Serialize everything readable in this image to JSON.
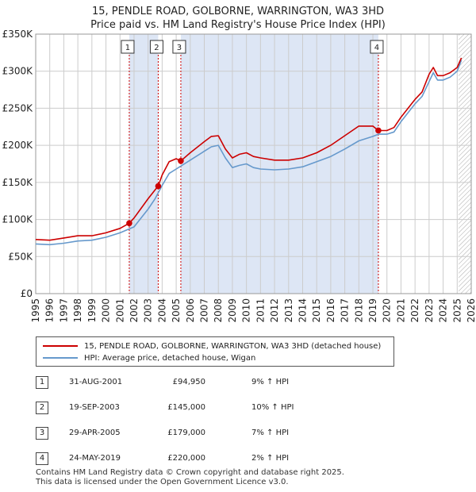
{
  "title": {
    "line1": "15, PENDLE ROAD, GOLBORNE, WARRINGTON, WA3 3HD",
    "line2": "Price paid vs. HM Land Registry's House Price Index (HPI)"
  },
  "chart_data": {
    "type": "line",
    "title": "15, PENDLE ROAD, GOLBORNE, WARRINGTON, WA3 3HD — Price paid vs. HM Land Registry's House Price Index (HPI)",
    "xlim": [
      1995,
      2026
    ],
    "ylim": [
      0,
      350000
    ],
    "x_ticks": [
      "1995",
      "1996",
      "1997",
      "1998",
      "1999",
      "2000",
      "2001",
      "2002",
      "2003",
      "2004",
      "2005",
      "2006",
      "2007",
      "2008",
      "2009",
      "2010",
      "2011",
      "2012",
      "2013",
      "2014",
      "2015",
      "2016",
      "2017",
      "2018",
      "2019",
      "2020",
      "2021",
      "2022",
      "2023",
      "2024",
      "2025",
      "2026"
    ],
    "y_ticks": [
      {
        "value": 0,
        "label": "£0"
      },
      {
        "value": 50000,
        "label": "£50K"
      },
      {
        "value": 100000,
        "label": "£100K"
      },
      {
        "value": 150000,
        "label": "£150K"
      },
      {
        "value": 200000,
        "label": "£200K"
      },
      {
        "value": 250000,
        "label": "£250K"
      },
      {
        "value": 300000,
        "label": "£300K"
      },
      {
        "value": 350000,
        "label": "£350K"
      }
    ],
    "grid": true,
    "series": [
      {
        "name": "15, PENDLE ROAD, GOLBORNE, WARRINGTON, WA3 3HD (detached house)",
        "color": "#cc0000",
        "x": [
          1995,
          1996,
          1997,
          1998,
          1999,
          2000,
          2001,
          2001.66,
          2002,
          2002.5,
          2003,
          2003.5,
          2003.72,
          2004,
          2004.5,
          2005,
          2005.33,
          2006,
          2007,
          2007.5,
          2008,
          2008.5,
          2009,
          2009.5,
          2010,
          2010.5,
          2011,
          2012,
          2013,
          2014,
          2015,
          2016,
          2017,
          2018,
          2019,
          2019.39,
          2020,
          2020.5,
          2021,
          2022,
          2022.5,
          2023,
          2023.3,
          2023.6,
          2024,
          2024.5,
          2025,
          2025.3
        ],
        "y": [
          73000,
          72000,
          75000,
          78000,
          78000,
          82000,
          88000,
          94950,
          102000,
          115000,
          128000,
          140000,
          145000,
          160000,
          178000,
          182000,
          179000,
          190000,
          205000,
          212000,
          213000,
          195000,
          183000,
          188000,
          190000,
          185000,
          183000,
          180000,
          180000,
          183000,
          190000,
          200000,
          213000,
          226000,
          226000,
          220000,
          220000,
          224000,
          238000,
          262000,
          272000,
          296000,
          305000,
          294000,
          294000,
          298000,
          305000,
          318000
        ]
      },
      {
        "name": "HPI: Average price, detached house, Wigan",
        "color": "#6699cc",
        "x": [
          1995,
          1996,
          1997,
          1998,
          1999,
          2000,
          2001,
          2002,
          2002.5,
          2003,
          2003.5,
          2004,
          2004.5,
          2005,
          2006,
          2007,
          2007.5,
          2008,
          2008.5,
          2009,
          2009.5,
          2010,
          2010.5,
          2011,
          2012,
          2013,
          2014,
          2015,
          2016,
          2017,
          2018,
          2019,
          2019.4,
          2020,
          2020.5,
          2021,
          2022,
          2022.5,
          2023,
          2023.3,
          2023.6,
          2024,
          2024.5,
          2025,
          2025.3
        ],
        "y": [
          67000,
          66000,
          68000,
          71000,
          72000,
          76000,
          82000,
          90000,
          102000,
          114000,
          128000,
          146000,
          162000,
          168000,
          180000,
          192000,
          198000,
          200000,
          183000,
          170000,
          173000,
          175000,
          170000,
          168000,
          167000,
          168000,
          171000,
          178000,
          185000,
          195000,
          206000,
          212000,
          215000,
          215000,
          218000,
          232000,
          256000,
          266000,
          286000,
          298000,
          288000,
          288000,
          292000,
          300000,
          315000
        ]
      }
    ],
    "sales": [
      {
        "label": "1",
        "x": 2001.66,
        "y": 94950
      },
      {
        "label": "2",
        "x": 2003.72,
        "y": 145000
      },
      {
        "label": "3",
        "x": 2005.33,
        "y": 179000
      },
      {
        "label": "4",
        "x": 2019.39,
        "y": 220000
      }
    ],
    "annotations": [
      "1",
      "2",
      "3",
      "4"
    ]
  },
  "legend": [
    {
      "label": "15, PENDLE ROAD, GOLBORNE, WARRINGTON, WA3 3HD (detached house)",
      "color": "#cc0000"
    },
    {
      "label": "HPI: Average price, detached house, Wigan",
      "color": "#6699cc"
    }
  ],
  "sales_table": [
    {
      "num": "1",
      "date": "31-AUG-2001",
      "price": "£94,950",
      "hpi": "9% ↑ HPI"
    },
    {
      "num": "2",
      "date": "19-SEP-2003",
      "price": "£145,000",
      "hpi": "10% ↑ HPI"
    },
    {
      "num": "3",
      "date": "29-APR-2005",
      "price": "£179,000",
      "hpi": "7% ↑ HPI"
    },
    {
      "num": "4",
      "date": "24-MAY-2019",
      "price": "£220,000",
      "hpi": "2% ↑ HPI"
    }
  ],
  "footer": {
    "line1": "Contains HM Land Registry data © Crown copyright and database right 2025.",
    "line2": "This data is licensed under the Open Government Licence v3.0."
  },
  "colors": {
    "property_line": "#cc0000",
    "hpi_line": "#6699cc",
    "shade": "#dde6f5",
    "grid": "#cccccc"
  }
}
